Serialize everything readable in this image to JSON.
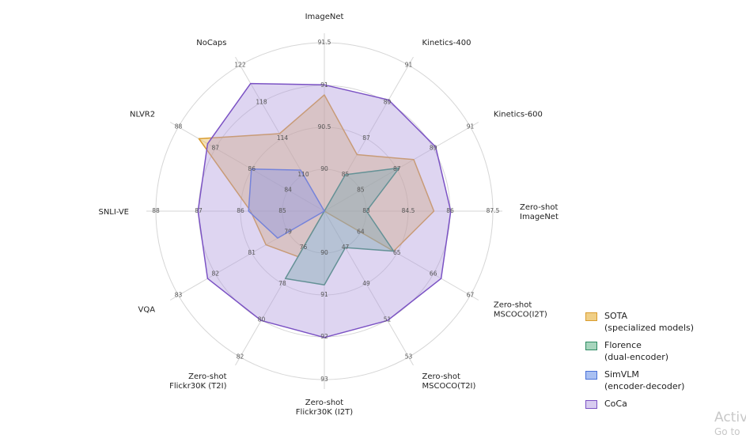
{
  "chart_data": {
    "type": "radar",
    "axes": [
      {
        "label": "ImageNet",
        "ticks": [
          "90",
          "90.5",
          "91",
          "91.5"
        ],
        "range": [
          89.5,
          91.5
        ]
      },
      {
        "label": "Kinetics-400",
        "ticks": [
          "85",
          "87",
          "89",
          "91"
        ],
        "range": [
          83,
          91
        ]
      },
      {
        "label": "Kinetics-600",
        "ticks": [
          "85",
          "87",
          "89",
          "91"
        ],
        "range": [
          83,
          91
        ]
      },
      {
        "label": "Zero-shot\nImageNet",
        "ticks": [
          "83",
          "84.5",
          "86",
          "87.5"
        ],
        "range": [
          81.5,
          87.5
        ]
      },
      {
        "label": "Zero-shot\nMSCOCO(I2T)",
        "ticks": [
          "64",
          "65",
          "66",
          "67"
        ],
        "range": [
          63,
          67
        ]
      },
      {
        "label": "Zero-shot\nMSCOCO(T2I)",
        "ticks": [
          "47",
          "49",
          "51",
          "53"
        ],
        "range": [
          45,
          53
        ]
      },
      {
        "label": "Zero-shot\nFlickr30K (I2T)",
        "ticks": [
          "90",
          "91",
          "92",
          "93"
        ],
        "range": [
          89,
          93
        ]
      },
      {
        "label": "Zero-shot\nFlickr30K (T2I)",
        "ticks": [
          "76",
          "78",
          "80",
          "82"
        ],
        "range": [
          74,
          82
        ]
      },
      {
        "label": "VQA",
        "ticks": [
          "79",
          "81",
          "82",
          "83"
        ],
        "tick_levels": [
          1,
          2,
          3,
          4
        ],
        "range": [
          78,
          83
        ]
      },
      {
        "label": "SNLI-VE",
        "ticks": [
          "85",
          "86",
          "87",
          "88"
        ],
        "range": [
          84,
          88
        ]
      },
      {
        "label": "NLVR2",
        "ticks": [
          "84",
          "86",
          "87",
          "88"
        ],
        "tick_levels": [
          1,
          2,
          3,
          4
        ],
        "range": [
          83,
          88
        ]
      },
      {
        "label": "NoCaps",
        "ticks": [
          "110",
          "114",
          "118",
          "122"
        ],
        "range": [
          106,
          122
        ]
      }
    ],
    "series": [
      {
        "name": "SOTA\n(specialized models)",
        "fill": "#e8b84f",
        "stroke": "#d99c2f",
        "values": [
          90.88,
          86.1,
          87.9,
          85.4,
          64.9,
          45.0,
          89.0,
          76.5,
          80.0,
          85.75,
          87.3,
          114.5
        ]
      },
      {
        "name": "Florence\n(dual-encoder)",
        "fill": "#5bb08c",
        "stroke": "#2e8b62",
        "values": [
          89.5,
          85.0,
          87.1,
          83.0,
          64.9,
          47.0,
          90.75,
          77.7,
          78.0,
          84.0,
          83.0,
          106.0
        ]
      },
      {
        "name": "SimVLM\n(encoder-decoder)",
        "fill": "#6f92e8",
        "stroke": "#4a72d8",
        "values": [
          89.5,
          83.0,
          83.0,
          81.5,
          63.0,
          45.0,
          89.0,
          74.0,
          79.6,
          85.8,
          85.5,
          110.5
        ]
      },
      {
        "name": "CoCa",
        "fill": "#b19cde",
        "stroke": "#7b52c4",
        "values": [
          91.0,
          89.1,
          89.1,
          86.0,
          66.2,
          51.0,
          92.0,
          80.0,
          82.0,
          87.0,
          87.0,
          120.0
        ]
      }
    ]
  },
  "watermark": {
    "line1": "Activ",
    "line2": "Go to"
  }
}
